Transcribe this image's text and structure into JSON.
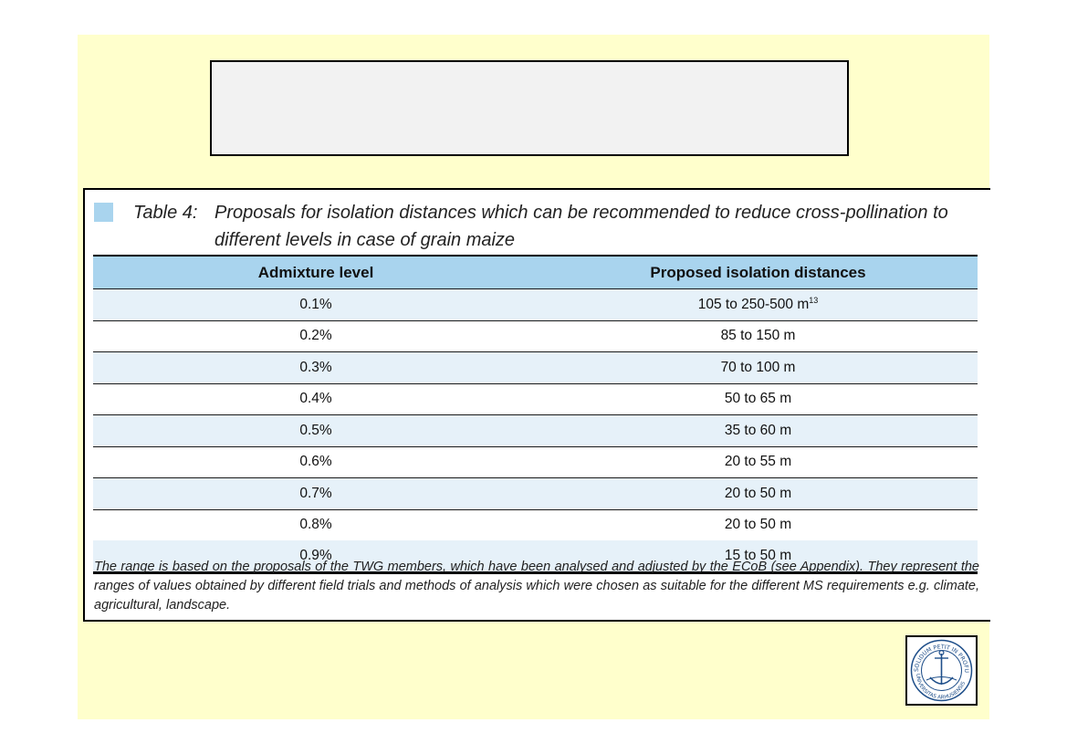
{
  "caption": {
    "label": "Table 4:",
    "line1": "Proposals for isolation distances which can be recommended to reduce cross-pollination to",
    "line2": "different levels in case of grain maize"
  },
  "table": {
    "headers": [
      "Admixture level",
      "Proposed isolation distances"
    ],
    "rows": [
      {
        "level": "0.1%",
        "distance": "105 to 250-500 m",
        "sup": "13"
      },
      {
        "level": "0.2%",
        "distance": "85 to 150 m"
      },
      {
        "level": "0.3%",
        "distance": "70 to 100 m"
      },
      {
        "level": "0.4%",
        "distance": "50 to 65 m"
      },
      {
        "level": "0.5%",
        "distance": "35 to 60 m"
      },
      {
        "level": "0.6%",
        "distance": "20 to 55 m"
      },
      {
        "level": "0.7%",
        "distance": "20 to 50 m"
      },
      {
        "level": "0.8%",
        "distance": "20 to 50 m"
      },
      {
        "level": "0.9%",
        "distance": "15 to 50 m"
      }
    ]
  },
  "note": "The range is based on the proposals of the TWG members, which have been analysed and adjusted by the ECoB (see Appendix). They represent the ranges of values obtained by different field trials and methods of analysis which were chosen as suitable for the different MS requirements e.g. climate, agricultural, landscape.",
  "seal": {
    "text": "SOLIDUM PETIT IN PROFUNDIS · UNIVERSITAS ARHUSIENSIS",
    "icon": "anchor-icon"
  },
  "colors": {
    "slide_background": "#ffffcc",
    "header_fill": "#a9d4ee",
    "row_tint": "#e6f1f9"
  }
}
